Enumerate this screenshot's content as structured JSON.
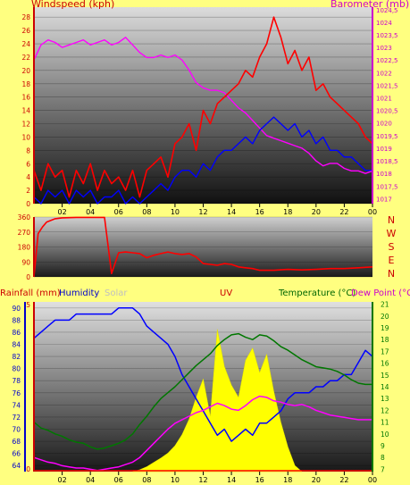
{
  "chart_data": [
    {
      "type": "line",
      "title": "",
      "subtitle": "",
      "left_axis_label": "Windspeed (kph)",
      "right_axis_label": "Barometer (mb)",
      "x_ticks": [
        "02",
        "04",
        "06",
        "08",
        "10",
        "12",
        "14",
        "16",
        "18",
        "20",
        "22",
        "00"
      ],
      "y_left_ticks": [
        0,
        2,
        4,
        6,
        8,
        10,
        12,
        14,
        16,
        18,
        20,
        22,
        24,
        26,
        28
      ],
      "y_left_range": [
        0,
        29.5
      ],
      "y_right_ticks": [
        "1017",
        "1017,5",
        "1018",
        "1018,5",
        "1019",
        "1019,5",
        "1020",
        "1020,5",
        "1021",
        "1021,5",
        "1022",
        "1022,5",
        "1023",
        "1023,5",
        "1024",
        "1024,5"
      ],
      "y_right_range": [
        1016.8,
        1024.6
      ],
      "grid": true,
      "series": [
        {
          "name": "Barometer",
          "axis": "right",
          "color": "#ff00ff",
          "x": [
            0,
            0.5,
            1,
            1.5,
            2,
            2.5,
            3,
            3.5,
            4,
            4.5,
            5,
            5.5,
            6,
            6.5,
            7,
            7.5,
            8,
            8.5,
            9,
            9.5,
            10,
            10.5,
            11,
            11.5,
            12,
            12.5,
            13,
            13.5,
            14,
            14.5,
            15,
            15.5,
            16,
            16.5,
            17,
            17.5,
            18,
            18.5,
            19,
            19.5,
            20,
            20.5,
            21,
            21.5,
            22,
            22.5,
            23,
            23.5,
            24
          ],
          "values": [
            1022.5,
            1023.1,
            1023.3,
            1023.2,
            1023.0,
            1023.1,
            1023.2,
            1023.3,
            1023.1,
            1023.2,
            1023.3,
            1023.1,
            1023.2,
            1023.4,
            1023.1,
            1022.8,
            1022.6,
            1022.6,
            1022.7,
            1022.6,
            1022.7,
            1022.5,
            1022.1,
            1021.6,
            1021.4,
            1021.3,
            1021.3,
            1021.2,
            1020.9,
            1020.6,
            1020.4,
            1020.1,
            1019.8,
            1019.5,
            1019.4,
            1019.3,
            1019.2,
            1019.1,
            1019.0,
            1018.8,
            1018.5,
            1018.3,
            1018.4,
            1018.4,
            1018.2,
            1018.1,
            1018.1,
            1018.0,
            1018.1
          ]
        },
        {
          "name": "Gust",
          "axis": "left",
          "color": "#ff0000",
          "x": [
            0,
            0.5,
            1,
            1.5,
            2,
            2.5,
            3,
            3.5,
            4,
            4.5,
            5,
            5.5,
            6,
            6.5,
            7,
            7.5,
            8,
            8.5,
            9,
            9.5,
            10,
            10.5,
            11,
            11.5,
            12,
            12.5,
            13,
            13.5,
            14,
            14.5,
            15,
            15.5,
            16,
            16.5,
            17,
            17.5,
            18,
            18.5,
            19,
            19.5,
            20,
            20.5,
            21,
            21.5,
            22,
            22.5,
            23,
            23.5,
            24
          ],
          "values": [
            5,
            2,
            6,
            4,
            5,
            1,
            5,
            3,
            6,
            2,
            5,
            3,
            4,
            2,
            5,
            1,
            5,
            6,
            7,
            4,
            9,
            10,
            12,
            8,
            14,
            12,
            15,
            16,
            17,
            18,
            20,
            19,
            22,
            24,
            28,
            25,
            21,
            23,
            20,
            22,
            17,
            18,
            16,
            15,
            14,
            13,
            12,
            10,
            9
          ]
        },
        {
          "name": "Windspeed",
          "axis": "left",
          "color": "#0000ff",
          "x": [
            0,
            0.5,
            1,
            1.5,
            2,
            2.5,
            3,
            3.5,
            4,
            4.5,
            5,
            5.5,
            6,
            6.5,
            7,
            7.5,
            8,
            8.5,
            9,
            9.5,
            10,
            10.5,
            11,
            11.5,
            12,
            12.5,
            13,
            13.5,
            14,
            14.5,
            15,
            15.5,
            16,
            16.5,
            17,
            17.5,
            18,
            18.5,
            19,
            19.5,
            20,
            20.5,
            21,
            21.5,
            22,
            22.5,
            23,
            23.5,
            24
          ],
          "values": [
            1,
            0,
            2,
            1,
            2,
            0,
            2,
            1,
            2,
            0,
            1,
            1,
            2,
            0,
            1,
            0,
            1,
            2,
            3,
            2,
            4,
            5,
            5,
            4,
            6,
            5,
            7,
            8,
            8,
            9,
            10,
            9,
            11,
            12,
            13,
            12,
            11,
            12,
            10,
            11,
            9,
            10,
            8,
            8,
            7,
            7,
            6,
            5,
            5
          ]
        }
      ]
    },
    {
      "type": "line",
      "title": "",
      "right_labels": [
        "N",
        "W",
        "S",
        "E",
        "N"
      ],
      "x_ticks": [],
      "y_left_ticks": [
        0,
        90,
        180,
        270,
        360
      ],
      "y_range": [
        0,
        360
      ],
      "grid": true,
      "series": [
        {
          "name": "Wind Direction",
          "color": "#ff0000",
          "x": [
            0,
            0.3,
            0.6,
            0.9,
            1.2,
            1.5,
            2,
            3,
            4,
            4.5,
            5,
            5.5,
            6,
            6.5,
            7,
            7.5,
            8,
            8.5,
            9,
            9.5,
            10,
            10.5,
            11,
            11.5,
            12,
            12.5,
            13,
            13.5,
            14,
            14.5,
            15,
            15.5,
            16,
            17,
            18,
            19,
            20,
            21,
            22,
            23,
            24
          ],
          "values": [
            0,
            260,
            300,
            330,
            340,
            350,
            355,
            358,
            358,
            358,
            358,
            20,
            145,
            150,
            145,
            140,
            115,
            130,
            140,
            150,
            140,
            135,
            140,
            120,
            80,
            75,
            70,
            80,
            75,
            60,
            55,
            50,
            40,
            40,
            45,
            42,
            45,
            50,
            50,
            55,
            60
          ]
        }
      ]
    },
    {
      "type": "line",
      "title": "",
      "legend": [
        {
          "label": "Rainfall (mm)",
          "color": "#cc0000"
        },
        {
          "label": "Humidity",
          "color": "#0000cc"
        },
        {
          "label": "Solar",
          "color": "#c0c0c0"
        },
        {
          "label": "UV",
          "color": "#cc0000"
        },
        {
          "label": "Temperature (°C)",
          "color": "#006600"
        },
        {
          "label": "Dew Point (°C)",
          "color": "#cc00cc"
        }
      ],
      "x_ticks": [
        "02",
        "04",
        "06",
        "08",
        "10",
        "12",
        "14",
        "16",
        "18",
        "20",
        "22",
        "00"
      ],
      "rain_axis_ticks": [
        "0",
        "5"
      ],
      "humidity_axis_ticks": [
        64,
        66,
        68,
        70,
        72,
        74,
        76,
        78,
        80,
        82,
        84,
        86,
        88,
        90
      ],
      "humidity_range": [
        63,
        91
      ],
      "temp_axis_ticks": [
        7,
        8,
        9,
        10,
        11,
        12,
        13,
        14,
        15,
        16,
        17,
        18,
        19,
        20,
        21
      ],
      "temp_range": [
        6.8,
        21.2
      ],
      "grid": true,
      "series": [
        {
          "name": "Humidity",
          "axis": "humidity",
          "color": "#0000ff",
          "x": [
            0,
            0.5,
            1,
            1.5,
            2,
            2.5,
            3,
            3.5,
            4,
            4.5,
            5,
            5.5,
            6,
            6.5,
            7,
            7.5,
            8,
            8.5,
            9,
            9.5,
            10,
            10.5,
            11,
            11.5,
            12,
            12.5,
            13,
            13.5,
            14,
            14.5,
            15,
            15.5,
            16,
            16.5,
            17,
            17.5,
            18,
            18.5,
            19,
            19.5,
            20,
            20.5,
            21,
            21.5,
            22,
            22.5,
            23,
            23.5,
            24
          ],
          "values": [
            85,
            86,
            87,
            88,
            88,
            88,
            89,
            89,
            89,
            89,
            89,
            89,
            90,
            90,
            90,
            89,
            87,
            86,
            85,
            84,
            82,
            79,
            77,
            75,
            73,
            71,
            69,
            70,
            68,
            69,
            70,
            69,
            71,
            71,
            72,
            73,
            75,
            76,
            76,
            76,
            77,
            77,
            78,
            78,
            79,
            79,
            81,
            83,
            82
          ]
        },
        {
          "name": "Temperature",
          "axis": "temp",
          "color": "#007700",
          "x": [
            0,
            0.5,
            1,
            1.5,
            2,
            2.5,
            3,
            3.5,
            4,
            4.5,
            5,
            5.5,
            6,
            6.5,
            7,
            7.5,
            8,
            8.5,
            9,
            9.5,
            10,
            10.5,
            11,
            11.5,
            12,
            12.5,
            13,
            13.5,
            14,
            14.5,
            15,
            15.5,
            16,
            16.5,
            17,
            17.5,
            18,
            18.5,
            19,
            19.5,
            20,
            20.5,
            21,
            21.5,
            22,
            22.5,
            23,
            23.5,
            24
          ],
          "values": [
            11,
            10.5,
            10.3,
            10,
            9.8,
            9.5,
            9.3,
            9.2,
            8.9,
            8.7,
            8.8,
            9,
            9.2,
            9.5,
            10,
            10.8,
            11.5,
            12.3,
            13,
            13.5,
            14,
            14.6,
            15.2,
            15.8,
            16.3,
            16.8,
            17.5,
            18,
            18.4,
            18.5,
            18.2,
            18,
            18.4,
            18.3,
            17.9,
            17.4,
            17.1,
            16.7,
            16.3,
            16,
            15.7,
            15.6,
            15.5,
            15.3,
            15,
            14.6,
            14.3,
            14.2,
            14.2
          ]
        },
        {
          "name": "Dew Point",
          "axis": "temp",
          "color": "#ff00ff",
          "x": [
            0,
            0.5,
            1,
            1.5,
            2,
            2.5,
            3,
            3.5,
            4,
            4.5,
            5,
            5.5,
            6,
            6.5,
            7,
            7.5,
            8,
            8.5,
            9,
            9.5,
            10,
            10.5,
            11,
            11.5,
            12,
            12.5,
            13,
            13.5,
            14,
            14.5,
            15,
            15.5,
            16,
            16.5,
            17,
            17.5,
            18,
            18.5,
            19,
            19.5,
            20,
            20.5,
            21,
            21.5,
            22,
            22.5,
            23,
            23.5,
            24
          ],
          "values": [
            8,
            7.8,
            7.6,
            7.5,
            7.3,
            7.2,
            7.1,
            7.1,
            7,
            6.9,
            7,
            7.1,
            7.2,
            7.4,
            7.6,
            8,
            8.6,
            9.2,
            9.8,
            10.4,
            10.9,
            11.2,
            11.5,
            11.8,
            12,
            12.3,
            12.6,
            12.4,
            12.1,
            12,
            12.4,
            12.9,
            13.2,
            13.1,
            12.8,
            12.7,
            12.5,
            12.4,
            12.5,
            12.3,
            12,
            11.8,
            11.6,
            11.5,
            11.4,
            11.3,
            11.2,
            11.2,
            11.2
          ]
        },
        {
          "name": "Rainfall",
          "axis": "rain",
          "color": "#ff0000",
          "x": [
            0,
            7.5,
            8,
            9,
            10,
            11,
            12,
            13,
            14,
            15,
            16,
            17,
            18,
            18.5,
            19,
            20,
            21,
            22,
            23,
            24
          ],
          "values": [
            0,
            0,
            0,
            0,
            0,
            0,
            0,
            0,
            0,
            0,
            0,
            0,
            0,
            0,
            0,
            0,
            0,
            0,
            0,
            0
          ]
        },
        {
          "name": "Solar",
          "axis": "solar",
          "color": "#ffff00",
          "x": [
            7,
            7.5,
            8,
            8.5,
            9,
            9.5,
            10,
            10.5,
            11,
            11.5,
            12,
            12.5,
            13,
            13.5,
            14,
            14.5,
            15,
            15.5,
            16,
            16.5,
            17,
            17.5,
            18,
            18.5,
            19
          ],
          "values": [
            0,
            3,
            8,
            15,
            22,
            30,
            42,
            60,
            85,
            120,
            150,
            90,
            230,
            170,
            140,
            120,
            180,
            200,
            160,
            190,
            130,
            80,
            40,
            10,
            0
          ]
        }
      ]
    }
  ]
}
